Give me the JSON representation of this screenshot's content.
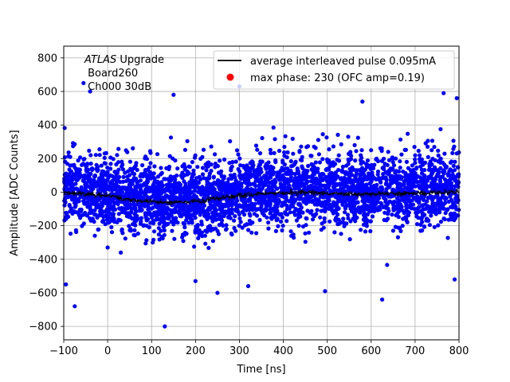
{
  "chart_data": {
    "type": "scatter",
    "xlabel": "Time [ns]",
    "ylabel": "Amplitude [ADC Counts]",
    "xlim": [
      -100,
      800
    ],
    "ylim": [
      -880,
      870
    ],
    "xticks": [
      -100,
      0,
      100,
      200,
      300,
      400,
      500,
      600,
      700,
      800
    ],
    "yticks": [
      -800,
      -600,
      -400,
      -200,
      0,
      200,
      400,
      600,
      800
    ],
    "xtick_labels": [
      "−100",
      "0",
      "100",
      "200",
      "300",
      "400",
      "500",
      "600",
      "700",
      "800"
    ],
    "ytick_labels": [
      "−800",
      "−600",
      "−400",
      "−200",
      "0",
      "200",
      "400",
      "600",
      "800"
    ],
    "grid": true,
    "legend_placement": "top-right",
    "annotation": {
      "line1_italic": "ATLAS",
      "line1_rest": " Upgrade",
      "line2": " Board260",
      "line3": " Ch000 30dB"
    },
    "colors": {
      "samples": "#0000ff",
      "average": "#000000",
      "max_phase": "#ff0000"
    },
    "series": [
      {
        "name": "average interleaved pulse 0.095mA",
        "kind": "line",
        "x": [
          -100,
          -50,
          0,
          50,
          100,
          150,
          200,
          250,
          300,
          350,
          400,
          450,
          500,
          550,
          600,
          650,
          700,
          750,
          800
        ],
        "y": [
          -5,
          -12,
          -25,
          -45,
          -58,
          -62,
          -55,
          -38,
          -20,
          -10,
          -5,
          -3,
          -8,
          -15,
          -12,
          -8,
          -5,
          -3,
          2
        ]
      },
      {
        "name": "max phase: 230 (OFC amp=0.19)",
        "kind": "marker",
        "x": [],
        "y": []
      },
      {
        "name": "samples",
        "kind": "scatter",
        "x_range": [
          -100,
          800
        ],
        "approx_core_band": [
          -200,
          200
        ],
        "outliers": [
          {
            "x": -55,
            "y": 650
          },
          {
            "x": -40,
            "y": 600
          },
          {
            "x": 0,
            "y": -330
          },
          {
            "x": 30,
            "y": -360
          },
          {
            "x": 130,
            "y": -800
          },
          {
            "x": 150,
            "y": 580
          },
          {
            "x": -95,
            "y": -550
          },
          {
            "x": -75,
            "y": -680
          },
          {
            "x": 200,
            "y": -530
          },
          {
            "x": 250,
            "y": -600
          },
          {
            "x": 300,
            "y": 630
          },
          {
            "x": 320,
            "y": -560
          },
          {
            "x": 495,
            "y": -590
          },
          {
            "x": 580,
            "y": 540
          },
          {
            "x": 625,
            "y": -640
          },
          {
            "x": 765,
            "y": 590
          },
          {
            "x": 795,
            "y": 560
          },
          {
            "x": 790,
            "y": -520
          }
        ]
      }
    ]
  }
}
